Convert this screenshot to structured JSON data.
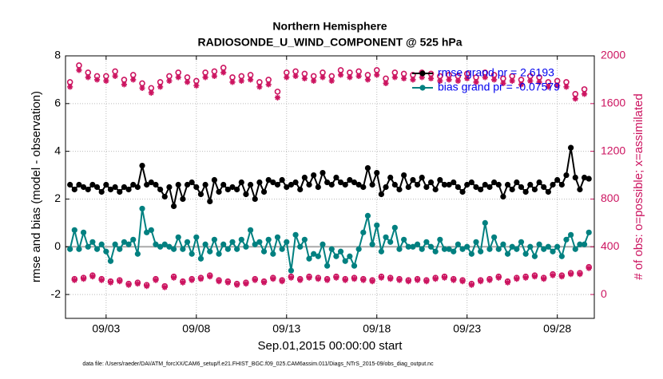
{
  "chart_data": {
    "type": "line",
    "title": "Northern Hemisphere",
    "subtitle": "RADIOSONDE_U_WIND_COMPONENT @ 525 hPa",
    "xlabel": "Sep.01,2015 00:00:00 start",
    "ylabel": "rmse and bias (model - observation)",
    "y2label": "# of obs: o=possible; x=assimilated",
    "footnote": "data file: /Users/raeder/DAI/ATM_forcXX/CAM6_setup/f.e21.FHIST_BGC.f09_025.CAM6assim.011/Diags_NTrS_2015-09/obs_diag_output.nc",
    "xlim": [
      -0.25,
      29.05
    ],
    "xticks": [
      {
        "value": 2,
        "label": "09/03"
      },
      {
        "value": 7,
        "label": "09/08"
      },
      {
        "value": 12,
        "label": "09/13"
      },
      {
        "value": 17,
        "label": "09/18"
      },
      {
        "value": 22,
        "label": "09/23"
      },
      {
        "value": 27,
        "label": "09/28"
      }
    ],
    "ylim": [
      -3,
      8
    ],
    "yticks": [
      -2,
      0,
      2,
      4,
      6,
      8
    ],
    "y2lim": [
      -200,
      2000
    ],
    "y2ticks": [
      0,
      400,
      800,
      1200,
      1600,
      2000
    ],
    "grid": true,
    "legend": "upper right",
    "x": [
      0,
      0.25,
      0.5,
      0.75,
      1,
      1.25,
      1.5,
      1.75,
      2,
      2.25,
      2.5,
      2.75,
      3,
      3.25,
      3.5,
      3.75,
      4,
      4.25,
      4.5,
      4.75,
      5,
      5.25,
      5.5,
      5.75,
      6,
      6.25,
      6.5,
      6.75,
      7,
      7.25,
      7.5,
      7.75,
      8,
      8.25,
      8.5,
      8.75,
      9,
      9.25,
      9.5,
      9.75,
      10,
      10.25,
      10.5,
      10.75,
      11,
      11.25,
      11.5,
      11.75,
      12,
      12.25,
      12.5,
      12.75,
      13,
      13.25,
      13.5,
      13.75,
      14,
      14.25,
      14.5,
      14.75,
      15,
      15.25,
      15.5,
      15.75,
      16,
      16.25,
      16.5,
      16.75,
      17,
      17.25,
      17.5,
      17.75,
      18,
      18.25,
      18.5,
      18.75,
      19,
      19.25,
      19.5,
      19.75,
      20,
      20.25,
      20.5,
      20.75,
      21,
      21.25,
      21.5,
      21.75,
      22,
      22.25,
      22.5,
      22.75,
      23,
      23.25,
      23.5,
      23.75,
      24,
      24.25,
      24.5,
      24.75,
      25,
      25.25,
      25.5,
      25.75,
      26,
      26.25,
      26.5,
      26.75,
      27,
      27.25,
      27.5,
      27.75,
      28,
      28.25,
      28.5,
      28.75
    ],
    "series": [
      {
        "name": "rmse grand pr = 2.6193",
        "color": "#000000",
        "marker": "filled-circle",
        "values": [
          2.6,
          2.4,
          2.6,
          2.5,
          2.4,
          2.6,
          2.5,
          2.3,
          2.6,
          2.4,
          2.5,
          2.3,
          2.5,
          2.4,
          2.6,
          2.5,
          3.4,
          2.6,
          2.7,
          2.6,
          2.4,
          2.1,
          2.5,
          1.7,
          2.6,
          2.0,
          2.6,
          2.7,
          2.5,
          2.2,
          2.6,
          1.9,
          2.8,
          2.3,
          2.6,
          2.4,
          2.5,
          2.4,
          2.7,
          2.2,
          2.6,
          2.0,
          2.7,
          2.3,
          2.8,
          2.7,
          2.6,
          2.8,
          2.5,
          2.6,
          2.7,
          2.4,
          2.9,
          2.6,
          3.0,
          2.5,
          3.1,
          2.7,
          2.6,
          2.9,
          2.7,
          2.6,
          2.8,
          2.7,
          2.6,
          2.5,
          3.3,
          2.6,
          3.1,
          2.2,
          2.5,
          2.9,
          2.6,
          2.4,
          3.0,
          2.5,
          2.8,
          2.6,
          2.9,
          2.5,
          2.7,
          2.4,
          2.8,
          2.6,
          2.6,
          2.7,
          2.5,
          2.3,
          2.6,
          2.7,
          2.5,
          2.4,
          2.6,
          2.5,
          2.7,
          2.6,
          2.1,
          2.6,
          2.4,
          2.7,
          2.5,
          2.3,
          2.6,
          2.4,
          2.7,
          2.5,
          2.3,
          2.6,
          2.8,
          2.6,
          3.0,
          4.15,
          2.9,
          2.4,
          2.9,
          2.85
        ]
      },
      {
        "name": "bias grand pr = -0.07579",
        "color": "#008080",
        "marker": "filled-circle",
        "values": [
          -0.1,
          0.7,
          -0.1,
          0.6,
          0.0,
          0.2,
          -0.1,
          0.1,
          -0.2,
          -0.6,
          0.1,
          -0.1,
          0.2,
          0.1,
          0.3,
          -0.3,
          1.6,
          0.6,
          0.7,
          0.1,
          0.0,
          0.1,
          0.0,
          -0.1,
          0.4,
          -0.1,
          0.2,
          -0.3,
          0.4,
          -0.5,
          0.1,
          -0.2,
          0.3,
          -0.3,
          0.1,
          -0.1,
          0.2,
          -0.1,
          0.3,
          0.0,
          0.7,
          0.1,
          0.2,
          -0.2,
          0.3,
          -0.3,
          0.4,
          -0.1,
          0.2,
          -1.0,
          0.5,
          0.0,
          0.3,
          -0.5,
          -0.3,
          -0.4,
          0.1,
          -0.8,
          -0.1,
          -0.4,
          -0.2,
          -0.6,
          -0.4,
          -0.8,
          -0.1,
          0.6,
          1.3,
          0.1,
          0.9,
          -0.2,
          0.4,
          0.2,
          0.8,
          -0.1,
          0.3,
          0.0,
          0.0,
          0.1,
          -0.1,
          0.2,
          0.0,
          -0.2,
          0.3,
          -0.1,
          -0.1,
          -0.2,
          0.1,
          -0.1,
          0.0,
          -0.3,
          0.2,
          -0.2,
          1.0,
          -0.1,
          0.4,
          -0.1,
          0.1,
          -0.3,
          0.0,
          -0.1,
          0.2,
          -0.3,
          0.0,
          -0.4,
          0.1,
          -0.1,
          0.0,
          -0.2,
          0.0,
          -0.4,
          0.3,
          0.5,
          -0.1,
          0.1,
          0.1,
          0.6
        ]
      },
      {
        "axis": "y2",
        "color": "#cc1460",
        "marker": "open-circle",
        "values": [
          1780,
          130,
          1920,
          140,
          1860,
          160,
          1830,
          130,
          1830,
          110,
          1870,
          120,
          1800,
          90,
          1840,
          100,
          1770,
          80,
          1730,
          130,
          1780,
          70,
          1830,
          150,
          1860,
          110,
          1820,
          130,
          1790,
          140,
          1860,
          160,
          1870,
          120,
          1900,
          110,
          1820,
          90,
          1830,
          100,
          1840,
          130,
          1780,
          110,
          1800,
          140,
          1700,
          120,
          1860,
          150,
          1870,
          130,
          1850,
          150,
          1830,
          140,
          1860,
          130,
          1830,
          150,
          1880,
          130,
          1860,
          140,
          1870,
          130,
          1840,
          120,
          1880,
          150,
          1810,
          140,
          1860,
          130,
          1850,
          120,
          1840,
          130,
          1860,
          120,
          1850,
          140,
          1830,
          150,
          1840,
          130,
          1830,
          120,
          1850,
          90,
          1820,
          120,
          1860,
          130,
          1840,
          150,
          1810,
          110,
          1830,
          140,
          1800,
          150,
          1830,
          160,
          1820,
          140,
          1780,
          170,
          1790,
          160,
          1780,
          180,
          1680,
          180,
          1720,
          230
        ]
      },
      {
        "axis": "y2",
        "color": "#cc1460",
        "marker": "asterisk",
        "values": [
          1740,
          120,
          1880,
          130,
          1820,
          150,
          1800,
          120,
          1790,
          100,
          1830,
          110,
          1760,
          80,
          1800,
          90,
          1730,
          70,
          1690,
          120,
          1740,
          60,
          1790,
          140,
          1820,
          100,
          1780,
          120,
          1750,
          130,
          1820,
          150,
          1830,
          110,
          1860,
          100,
          1780,
          80,
          1790,
          90,
          1800,
          120,
          1740,
          100,
          1760,
          130,
          1650,
          110,
          1820,
          140,
          1830,
          120,
          1810,
          140,
          1790,
          130,
          1820,
          120,
          1790,
          140,
          1840,
          120,
          1820,
          130,
          1830,
          120,
          1800,
          110,
          1840,
          140,
          1770,
          130,
          1820,
          120,
          1810,
          110,
          1800,
          120,
          1820,
          110,
          1810,
          130,
          1790,
          140,
          1800,
          120,
          1790,
          110,
          1810,
          80,
          1780,
          110,
          1820,
          120,
          1800,
          140,
          1770,
          100,
          1790,
          130,
          1760,
          140,
          1790,
          150,
          1780,
          130,
          1740,
          160,
          1750,
          150,
          1740,
          170,
          1640,
          170,
          1680,
          220
        ]
      }
    ]
  }
}
